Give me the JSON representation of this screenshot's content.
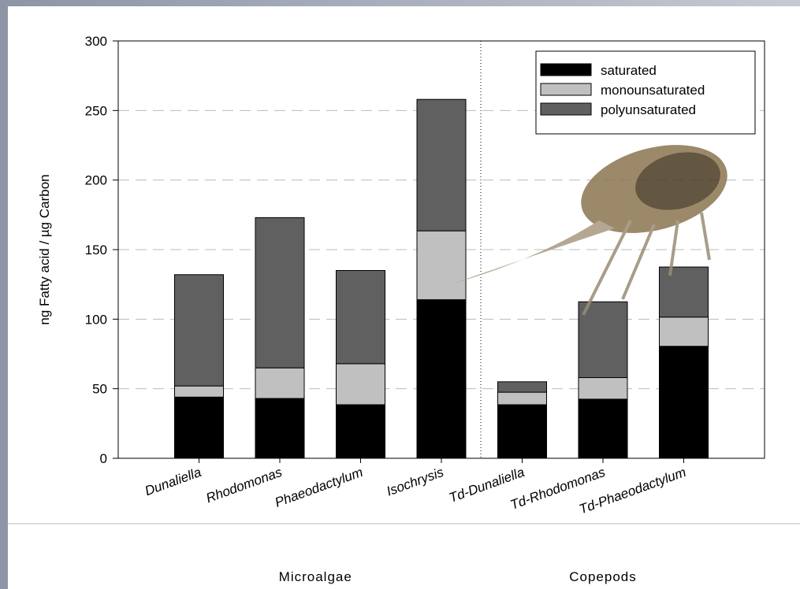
{
  "chart_data": {
    "type": "stacked_bar",
    "ylabel": "ng Fatty acid / µg Carbon",
    "categories": [
      "Dunaliella",
      "Rhodomonas",
      "Phaeodactylum",
      "Isochrysis",
      "Td-Dunaliella",
      "Td-Rhodomonas",
      "Td-Phaeodactylum"
    ],
    "series": [
      {
        "name": "saturated",
        "color": "#000000",
        "values": [
          44,
          43,
          38.5,
          114,
          38.5,
          42.5,
          80.5
        ]
      },
      {
        "name": "monounsaturated",
        "color": "#c0c0c0",
        "values": [
          8,
          22,
          29.5,
          49.5,
          9,
          15.5,
          21
        ]
      },
      {
        "name": "polyunsaturated",
        "color": "#606060",
        "values": [
          80,
          108,
          67,
          94.5,
          7.5,
          54.5,
          36
        ]
      }
    ],
    "ylim": [
      0,
      300
    ],
    "yticks": [
      0,
      50,
      100,
      150,
      200,
      250,
      300
    ],
    "grid": true,
    "legend": "upper right",
    "group_labels": [
      "Microalgae",
      "Copepods"
    ]
  }
}
